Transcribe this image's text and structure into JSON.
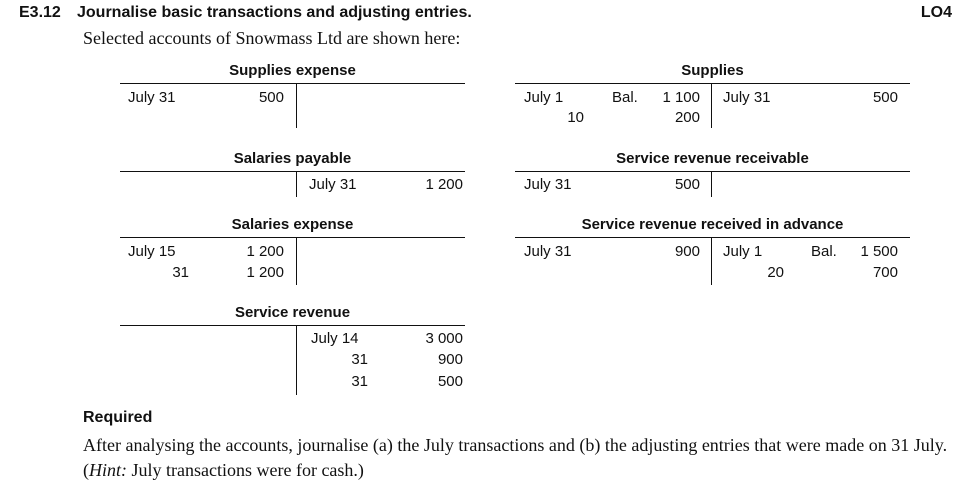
{
  "exercise": {
    "number": "E3.12",
    "title": "Journalise basic transactions and adjusting entries.",
    "lo": "LO4",
    "intro": "Selected accounts of Snowmass Ltd are shown here:"
  },
  "accounts": {
    "supplies_expense": {
      "title": "Supplies expense",
      "debit": [
        {
          "date": "July 31",
          "amount": "500"
        }
      ]
    },
    "supplies": {
      "title": "Supplies",
      "debit": [
        {
          "date": "July  1",
          "label": "Bal.",
          "amount": "1 100"
        },
        {
          "date": "10",
          "amount": "200"
        }
      ],
      "credit": [
        {
          "date": "July 31",
          "amount": "500"
        }
      ]
    },
    "salaries_payable": {
      "title": "Salaries payable",
      "credit": [
        {
          "date": "July 31",
          "amount": "1 200"
        }
      ]
    },
    "service_revenue_receivable": {
      "title": "Service revenue receivable",
      "debit": [
        {
          "date": "July 31",
          "amount": "500"
        }
      ]
    },
    "salaries_expense": {
      "title": "Salaries expense",
      "debit": [
        {
          "date": "July 15",
          "amount": "1 200"
        },
        {
          "date": "31",
          "amount": "1 200"
        }
      ]
    },
    "service_revenue_received_in_advance": {
      "title": "Service revenue received in advance",
      "debit": [
        {
          "date": "July 31",
          "amount": "900"
        }
      ],
      "credit": [
        {
          "date": "July  1",
          "label": "Bal.",
          "amount": "1 500"
        },
        {
          "date": "20",
          "amount": "700"
        }
      ]
    },
    "service_revenue": {
      "title": "Service revenue",
      "credit": [
        {
          "date": "July 14",
          "amount": "3 000"
        },
        {
          "date": "31",
          "amount": "900"
        },
        {
          "date": "31",
          "amount": "500"
        }
      ]
    }
  },
  "required": {
    "heading": "Required",
    "text_1": "After analysing the accounts, journalise (a) the July transactions and (b) the adjusting entries that were made on 31 July. (",
    "hint_label": "Hint:",
    "text_2": " July transactions were for cash.)"
  }
}
